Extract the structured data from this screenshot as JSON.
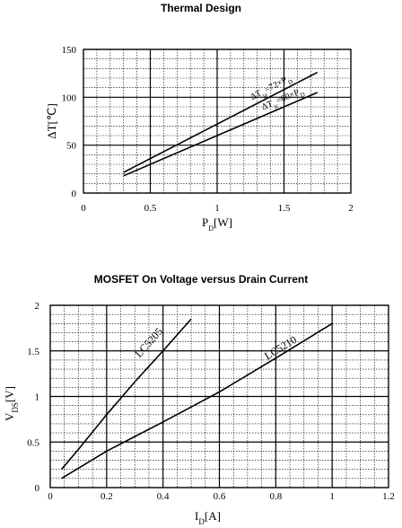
{
  "chart_data": [
    {
      "type": "line",
      "title": "Thermal Design",
      "xlabel": "PD[W]",
      "xlabel_main": "P",
      "xlabel_sub": "D",
      "xlabel_unit": "[W]",
      "ylabel": "ΔT[℃]",
      "xlim": [
        0,
        2
      ],
      "ylim": [
        0,
        150
      ],
      "x_major_ticks": [
        0,
        0.5,
        1,
        1.5,
        2
      ],
      "x_tick_labels": [
        "0",
        "0.5",
        "1",
        "1.5",
        "2"
      ],
      "y_major_ticks": [
        0,
        50,
        100,
        150
      ],
      "y_tick_labels": [
        "0",
        "50",
        "100",
        "150"
      ],
      "x_minor_step": 0.1,
      "y_minor_step": 10,
      "grid": true,
      "series": [
        {
          "name": "ΔTja=72×PD",
          "label_parts": [
            "ΔT",
            "ja",
            "=72×P",
            "D"
          ],
          "x": [
            0.3,
            1.75
          ],
          "y": [
            21.6,
            126
          ]
        },
        {
          "name": "ΔTjc=60×PD",
          "label_parts": [
            "ΔT",
            "jc",
            "=60×P",
            "D"
          ],
          "x": [
            0.3,
            1.75
          ],
          "y": [
            18,
            105
          ]
        }
      ]
    },
    {
      "type": "line",
      "title": "MOSFET On Voltage versus Drain Current",
      "xlabel": "ID[A]",
      "xlabel_main": "I",
      "xlabel_sub": "D",
      "xlabel_unit": "[A]",
      "ylabel": "VDS[V]",
      "ylabel_main": "V",
      "ylabel_sub": "DS",
      "ylabel_unit": "[V]",
      "xlim": [
        0,
        1.2
      ],
      "ylim": [
        0,
        2
      ],
      "x_major_ticks": [
        0,
        0.2,
        0.4,
        0.6,
        0.8,
        1,
        1.2
      ],
      "x_tick_labels": [
        "0",
        "0.2",
        "0.4",
        "0.6",
        "0.8",
        "1",
        "1.2"
      ],
      "y_major_ticks": [
        0,
        0.5,
        1,
        1.5,
        2
      ],
      "y_tick_labels": [
        "0",
        "0.5",
        "1",
        "1.5",
        "2"
      ],
      "x_minor_step": 0.05,
      "y_minor_step": 0.1,
      "grid": true,
      "series": [
        {
          "name": "LC5205",
          "x": [
            0.04,
            0.1,
            0.2,
            0.3,
            0.4,
            0.5
          ],
          "y": [
            0.2,
            0.42,
            0.8,
            1.16,
            1.5,
            1.85
          ]
        },
        {
          "name": "LC5210",
          "x": [
            0.04,
            0.2,
            0.4,
            0.6,
            0.8,
            1
          ],
          "y": [
            0.1,
            0.4,
            0.72,
            1.05,
            1.42,
            1.8
          ]
        }
      ]
    }
  ]
}
